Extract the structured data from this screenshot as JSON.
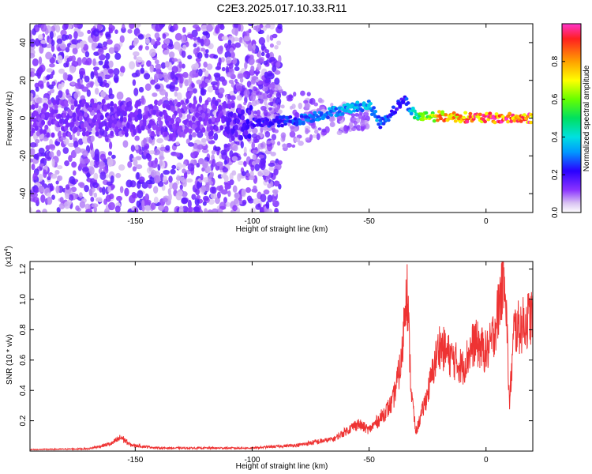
{
  "title": "C2E3.2025.017.10.33.R11",
  "colors": {
    "snr_line": "#ee3333",
    "spectrum_low": "#d9c2f2",
    "spectrum_mid": "#5a12e6"
  },
  "chart_data": [
    {
      "type": "heatmap",
      "panel": "top",
      "xlabel": "Height of straight line (km)",
      "ylabel": "Frequency (Hz)",
      "xlim": [
        -195,
        20
      ],
      "ylim": [
        -50,
        50
      ],
      "x_ticks": [
        -150,
        -100,
        -50,
        0
      ],
      "y_ticks": [
        -40,
        -20,
        0,
        20,
        40
      ],
      "colorbar": {
        "label": "Normalized spectral amplitude",
        "ticks": [
          "0.0",
          "0.2",
          "0.4",
          "0.6",
          "0.8"
        ],
        "range": [
          0,
          1
        ]
      },
      "ridge": {
        "x": [
          -195,
          -160,
          -120,
          -100,
          -80,
          -60,
          -50,
          -45,
          -35,
          -30,
          -20,
          0,
          20
        ],
        "y": [
          0,
          0,
          0,
          -3,
          -1,
          5,
          7,
          -3,
          10,
          1,
          1,
          0,
          0
        ],
        "amplitude": [
          0.12,
          0.14,
          0.12,
          0.2,
          0.28,
          0.35,
          0.35,
          0.3,
          0.2,
          0.5,
          0.8,
          0.9,
          0.9
        ]
      }
    },
    {
      "type": "line",
      "panel": "bottom",
      "xlabel": "Height of straight line (km)",
      "ylabel": "SNR (10 * v/v)",
      "y_scale_label": "(x10",
      "y_scale_exp": "4",
      "xlim": [
        -195,
        20
      ],
      "ylim": [
        0,
        1.25
      ],
      "x_ticks": [
        -150,
        -100,
        -50,
        0
      ],
      "y_ticks": [
        0.2,
        0.4,
        0.6,
        0.8,
        1.0,
        1.2
      ],
      "series": [
        {
          "x": [
            -195,
            -170,
            -160,
            -156,
            -152,
            -140,
            -120,
            -100,
            -80,
            -65,
            -55,
            -50,
            -45,
            -40,
            -36,
            -34,
            -32,
            -30,
            -25,
            -20,
            -15,
            -10,
            -5,
            0,
            2,
            5,
            8,
            10,
            12,
            15,
            20
          ],
          "y": [
            0.01,
            0.015,
            0.05,
            0.09,
            0.04,
            0.02,
            0.02,
            0.02,
            0.04,
            0.08,
            0.18,
            0.14,
            0.22,
            0.32,
            0.6,
            1.15,
            0.4,
            0.12,
            0.38,
            0.7,
            0.62,
            0.55,
            0.72,
            0.65,
            0.7,
            0.9,
            1.25,
            0.3,
            0.8,
            0.82,
            0.9
          ]
        }
      ]
    }
  ]
}
